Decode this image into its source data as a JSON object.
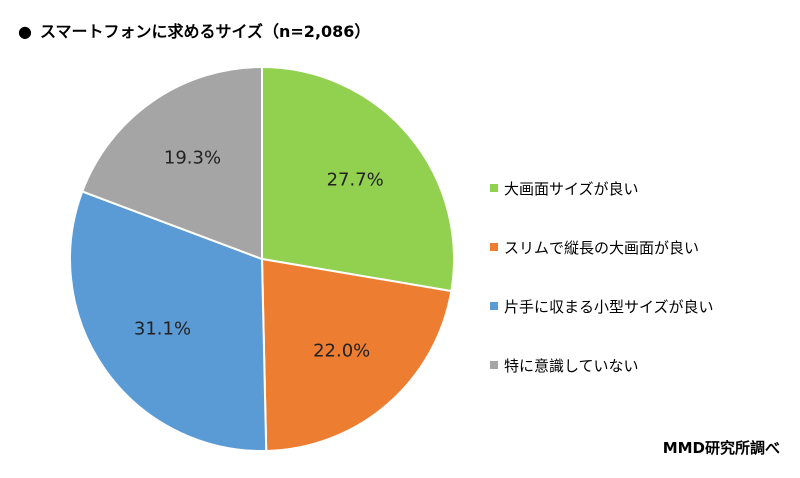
{
  "chart_data": {
    "type": "pie",
    "title": "スマートフォンに求めるサイズ（n=2,086）",
    "title_bullet": "●",
    "slices": [
      {
        "label": "大画面サイズが良い",
        "value": 27.7,
        "display": "27.7%",
        "color": "#92d050"
      },
      {
        "label": "スリムで縦長の大画面が良い",
        "value": 22.0,
        "display": "22.0%",
        "color": "#ed7d31"
      },
      {
        "label": "片手に収まる小型サイズが良い",
        "value": 31.1,
        "display": "31.1%",
        "color": "#5b9bd5"
      },
      {
        "label": "特に意識していない",
        "value": 19.3,
        "display": "19.3%",
        "color": "#a5a5a5"
      }
    ],
    "legend_position": "right",
    "source": "MMD研究所調べ"
  }
}
